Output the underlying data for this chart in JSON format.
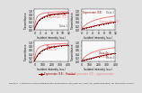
{
  "fig_title": "Figure 8 - Saturation curves obtained with expressions (18) (Hercher) and (22) (approximation) for two types of data",
  "panels": [
    {
      "xlabel": "Incident intensity (a.u.)",
      "ylabel": "Transmittance",
      "xlim": [
        0,
        12
      ],
      "ylim": [
        0.0,
        1.1
      ],
      "yticks": [
        0.0,
        0.2,
        0.4,
        0.6,
        0.8,
        1.0
      ],
      "xticks": [
        0,
        2,
        4,
        6,
        8,
        10,
        12
      ],
      "Is": 0.5,
      "T0": 0.05,
      "Tns": 1.0,
      "shape": "fast"
    },
    {
      "xlabel": "Incident intensity (a.u.)",
      "ylabel": "Transmittance",
      "xlim": [
        0,
        12
      ],
      "ylim": [
        0.0,
        1.1
      ],
      "yticks": [
        0.0,
        0.2,
        0.4,
        0.6,
        0.8,
        1.0
      ],
      "xticks": [
        0,
        2,
        4,
        6,
        8,
        10,
        12
      ],
      "Is": 5.0,
      "T0": 0.05,
      "Tns": 1.0,
      "shape": "sigmoid"
    },
    {
      "xlabel": "Incident intensity (a.u.)",
      "ylabel": "Transmittance",
      "xlim": [
        0,
        400
      ],
      "ylim": [
        0.0,
        1.1
      ],
      "yticks": [
        0.0,
        0.2,
        0.4,
        0.6,
        0.8,
        1.0
      ],
      "xticks": [
        0,
        100,
        200,
        300,
        400
      ],
      "Is": 20.0,
      "T0": 0.05,
      "Tns": 1.0,
      "shape": "fast"
    },
    {
      "xlabel": "Incident intensity (a.u.)",
      "ylabel": "Transmittance",
      "xlim": [
        0,
        400
      ],
      "ylim": [
        0.0,
        1.1
      ],
      "yticks": [
        0.0,
        0.2,
        0.4,
        0.6,
        0.8,
        1.0
      ],
      "xticks": [
        0,
        100,
        200,
        300,
        400
      ],
      "Is": 150.0,
      "T0": 0.05,
      "Tns": 1.0,
      "shape": "sigmoid"
    }
  ],
  "color_hercher": "#8B0000",
  "color_approx": "#E88080",
  "legend_hercher": "Expression (18) - Hercher",
  "legend_approx": "Expression (22) - approximation",
  "legend_hercher_short": "Expression (18)",
  "legend_approx_short": "Expression (22)"
}
